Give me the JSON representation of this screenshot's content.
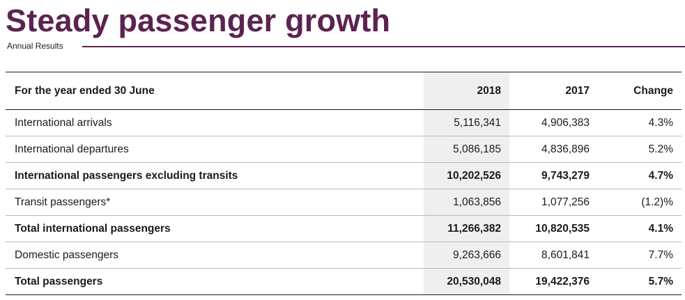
{
  "header": {
    "title": "Steady passenger growth",
    "subtitle": "Annual Results"
  },
  "table": {
    "columns": [
      "For the year ended 30 June",
      "2018",
      "2017",
      "Change"
    ],
    "rows": [
      {
        "label": "International arrivals",
        "y2018": "5,116,341",
        "y2017": "4,906,383",
        "change": "4.3%",
        "bold": false
      },
      {
        "label": "International departures",
        "y2018": "5,086,185",
        "y2017": "4,836,896",
        "change": "5.2%",
        "bold": false
      },
      {
        "label": "International passengers excluding transits",
        "y2018": "10,202,526",
        "y2017": "9,743,279",
        "change": "4.7%",
        "bold": true
      },
      {
        "label": "Transit passengers*",
        "y2018": "1,063,856",
        "y2017": "1,077,256",
        "change": "(1.2)%",
        "bold": false
      },
      {
        "label": "Total international passengers",
        "y2018": "11,266,382",
        "y2017": "10,820,535",
        "change": "4.1%",
        "bold": true
      },
      {
        "label": "Domestic passengers",
        "y2018": "9,263,666",
        "y2017": "8,601,841",
        "change": "7.7%",
        "bold": false
      },
      {
        "label": "Total passengers",
        "y2018": "20,530,048",
        "y2017": "19,422,376",
        "change": "5.7%",
        "bold": true
      }
    ]
  },
  "colors": {
    "accent": "#5c2350",
    "highlight_column": "#efefef"
  }
}
